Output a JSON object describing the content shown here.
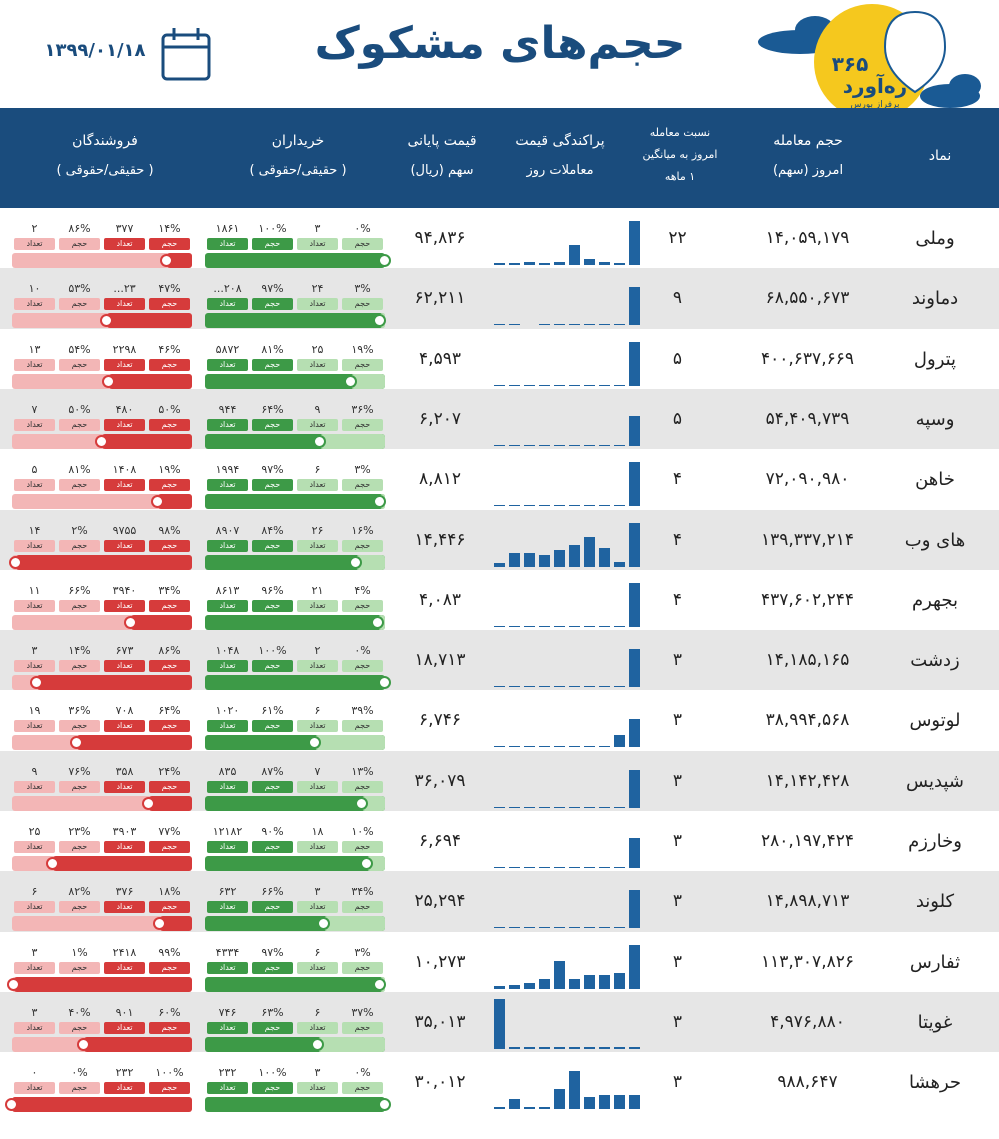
{
  "header": {
    "title": "حجم‌های مشکوک",
    "date": "۱۳۹۹/۰۱/۱۸",
    "logo_number": "۳۶۵",
    "logo_name": "ره‌آورد",
    "logo_tagline": "برفراز بورس"
  },
  "table": {
    "columns": [
      [
        "نماد"
      ],
      [
        "حجم معامله",
        "امروز (سهم)"
      ],
      [
        "نسبت معامله",
        "امروز به میانگین",
        "۱ ماهه"
      ],
      [
        "پراکندگی قیمت",
        "معاملات روز"
      ],
      [
        "قیمت پایانی",
        "سهم (ریال)"
      ],
      [
        "خریداران",
        "( حقیقی/حقوقی )"
      ],
      [
        "فروشندگان",
        "( حقیقی/حقوقی )"
      ]
    ],
    "tag_volume": "حجم",
    "tag_count": "تعداد",
    "rows": [
      {
        "symbol": "وملی",
        "volume": "۱۴,۰۵۹,۱۷۹",
        "ratio": "۲۲",
        "dispersion": [
          2,
          2,
          3,
          2,
          3,
          20,
          6,
          3,
          2,
          44
        ],
        "price": "۹۴,۸۳۶",
        "buyers": [
          "۰%",
          "۳",
          "۱۰۰%",
          "۱۸۶۱"
        ],
        "sellers": [
          "۱۴%",
          "۳۷۷",
          "۸۶%",
          "۲"
        ]
      },
      {
        "symbol": "دماوند",
        "volume": "۶۸,۵۵۰,۶۷۳",
        "ratio": "۹",
        "dispersion": [
          1,
          1,
          0,
          1,
          1,
          1,
          1,
          1,
          1,
          38
        ],
        "price": "۶۲,۲۱۱",
        "buyers": [
          "۳%",
          "۲۴",
          "۹۷%",
          "۲۰۸..."
        ],
        "sellers": [
          "۴۷%",
          "۲۳...",
          "۵۳%",
          "۱۰"
        ]
      },
      {
        "symbol": "پترول",
        "volume": "۴۰۰,۶۳۷,۶۶۹",
        "ratio": "۵",
        "dispersion": [
          1,
          1,
          1,
          1,
          1,
          1,
          1,
          1,
          1,
          44
        ],
        "price": "۴,۵۹۳",
        "buyers": [
          "۱۹%",
          "۲۵",
          "۸۱%",
          "۵۸۷۲"
        ],
        "sellers": [
          "۴۶%",
          "۲۲۹۸",
          "۵۴%",
          "۱۳"
        ]
      },
      {
        "symbol": "وسپه",
        "volume": "۵۴,۴۰۹,۷۳۹",
        "ratio": "۵",
        "dispersion": [
          1,
          1,
          1,
          1,
          1,
          1,
          1,
          1,
          1,
          30
        ],
        "price": "۶,۲۰۷",
        "buyers": [
          "۳۶%",
          "۹",
          "۶۴%",
          "۹۴۴"
        ],
        "sellers": [
          "۵۰%",
          "۴۸۰",
          "۵۰%",
          "۷"
        ]
      },
      {
        "symbol": "خاهن",
        "volume": "۷۲,۰۹۰,۹۸۰",
        "ratio": "۴",
        "dispersion": [
          1,
          1,
          1,
          1,
          1,
          1,
          1,
          1,
          1,
          44
        ],
        "price": "۸,۸۱۲",
        "buyers": [
          "۳%",
          "۶",
          "۹۷%",
          "۱۹۹۴"
        ],
        "sellers": [
          "۱۹%",
          "۱۴۰۸",
          "۸۱%",
          "۵"
        ]
      },
      {
        "symbol": "های وب",
        "volume": "۱۳۹,۳۳۷,۲۱۴",
        "ratio": "۴",
        "dispersion": [
          4,
          14,
          14,
          12,
          17,
          22,
          30,
          19,
          5,
          44
        ],
        "price": "۱۴,۴۴۶",
        "buyers": [
          "۱۶%",
          "۲۶",
          "۸۴%",
          "۸۹۰۷"
        ],
        "sellers": [
          "۹۸%",
          "۹۷۵۵",
          "۲%",
          "۱۴"
        ]
      },
      {
        "symbol": "بجهرم",
        "volume": "۴۳۷,۶۰۲,۲۴۴",
        "ratio": "۴",
        "dispersion": [
          1,
          1,
          1,
          1,
          1,
          1,
          1,
          1,
          1,
          44
        ],
        "price": "۴,۰۸۳",
        "buyers": [
          "۴%",
          "۲۱",
          "۹۶%",
          "۸۶۱۳"
        ],
        "sellers": [
          "۳۴%",
          "۳۹۴۰",
          "۶۶%",
          "۱۱"
        ]
      },
      {
        "symbol": "زدشت",
        "volume": "۱۴,۱۸۵,۱۶۵",
        "ratio": "۳",
        "dispersion": [
          1,
          1,
          1,
          1,
          1,
          1,
          1,
          1,
          1,
          38
        ],
        "price": "۱۸,۷۱۳",
        "buyers": [
          "۰%",
          "۲",
          "۱۰۰%",
          "۱۰۴۸"
        ],
        "sellers": [
          "۸۶%",
          "۶۷۳",
          "۱۴%",
          "۳"
        ]
      },
      {
        "symbol": "لوتوس",
        "volume": "۳۸,۹۹۴,۵۶۸",
        "ratio": "۳",
        "dispersion": [
          1,
          1,
          1,
          1,
          1,
          1,
          1,
          1,
          12,
          28
        ],
        "price": "۶,۷۴۶",
        "buyers": [
          "۳۹%",
          "۶",
          "۶۱%",
          "۱۰۲۰"
        ],
        "sellers": [
          "۶۴%",
          "۷۰۸",
          "۳۶%",
          "۱۹"
        ]
      },
      {
        "symbol": "شپدیس",
        "volume": "۱۴,۱۴۲,۴۲۸",
        "ratio": "۳",
        "dispersion": [
          1,
          1,
          1,
          1,
          1,
          1,
          1,
          1,
          1,
          38
        ],
        "price": "۳۶,۰۷۹",
        "buyers": [
          "۱۳%",
          "۷",
          "۸۷%",
          "۸۳۵"
        ],
        "sellers": [
          "۲۴%",
          "۳۵۸",
          "۷۶%",
          "۹"
        ]
      },
      {
        "symbol": "وخارزم",
        "volume": "۲۸۰,۱۹۷,۴۲۴",
        "ratio": "۳",
        "dispersion": [
          1,
          1,
          1,
          1,
          1,
          1,
          1,
          1,
          1,
          30
        ],
        "price": "۶,۶۹۴",
        "buyers": [
          "۱۰%",
          "۱۸",
          "۹۰%",
          "۱۲۱۸۲"
        ],
        "sellers": [
          "۷۷%",
          "۳۹۰۳",
          "۲۳%",
          "۲۵"
        ]
      },
      {
        "symbol": "کلوند",
        "volume": "۱۴,۸۹۸,۷۱۳",
        "ratio": "۳",
        "dispersion": [
          1,
          1,
          1,
          1,
          1,
          1,
          1,
          1,
          1,
          38
        ],
        "price": "۲۵,۲۹۴",
        "buyers": [
          "۳۴%",
          "۳",
          "۶۶%",
          "۶۳۲"
        ],
        "sellers": [
          "۱۸%",
          "۳۷۶",
          "۸۲%",
          "۶"
        ]
      },
      {
        "symbol": "ثفارس",
        "volume": "۱۱۳,۳۰۷,۸۲۶",
        "ratio": "۳",
        "dispersion": [
          3,
          4,
          6,
          10,
          28,
          10,
          14,
          14,
          16,
          44
        ],
        "price": "۱۰,۲۷۳",
        "buyers": [
          "۳%",
          "۶",
          "۹۷%",
          "۴۳۳۴"
        ],
        "sellers": [
          "۹۹%",
          "۲۴۱۸",
          "۱%",
          "۳"
        ]
      },
      {
        "symbol": "غویتا",
        "volume": "۴,۹۷۶,۸۸۰",
        "ratio": "۳",
        "dispersion": [
          50,
          2,
          2,
          2,
          2,
          2,
          2,
          2,
          2,
          2
        ],
        "price": "۳۵,۰۱۳",
        "buyers": [
          "۳۷%",
          "۶",
          "۶۳%",
          "۷۴۶"
        ],
        "sellers": [
          "۶۰%",
          "۹۰۱",
          "۴۰%",
          "۳"
        ]
      },
      {
        "symbol": "حرهشا",
        "volume": "۹۸۸,۶۴۷",
        "ratio": "۳",
        "dispersion": [
          2,
          10,
          2,
          2,
          20,
          38,
          12,
          14,
          14,
          14
        ],
        "price": "۳۰,۰۱۲",
        "buyers": [
          "۰%",
          "۳",
          "۱۰۰%",
          "۲۳۲"
        ],
        "sellers": [
          "۱۰۰%",
          "۲۳۲",
          "۰%",
          "۰"
        ]
      }
    ]
  }
}
